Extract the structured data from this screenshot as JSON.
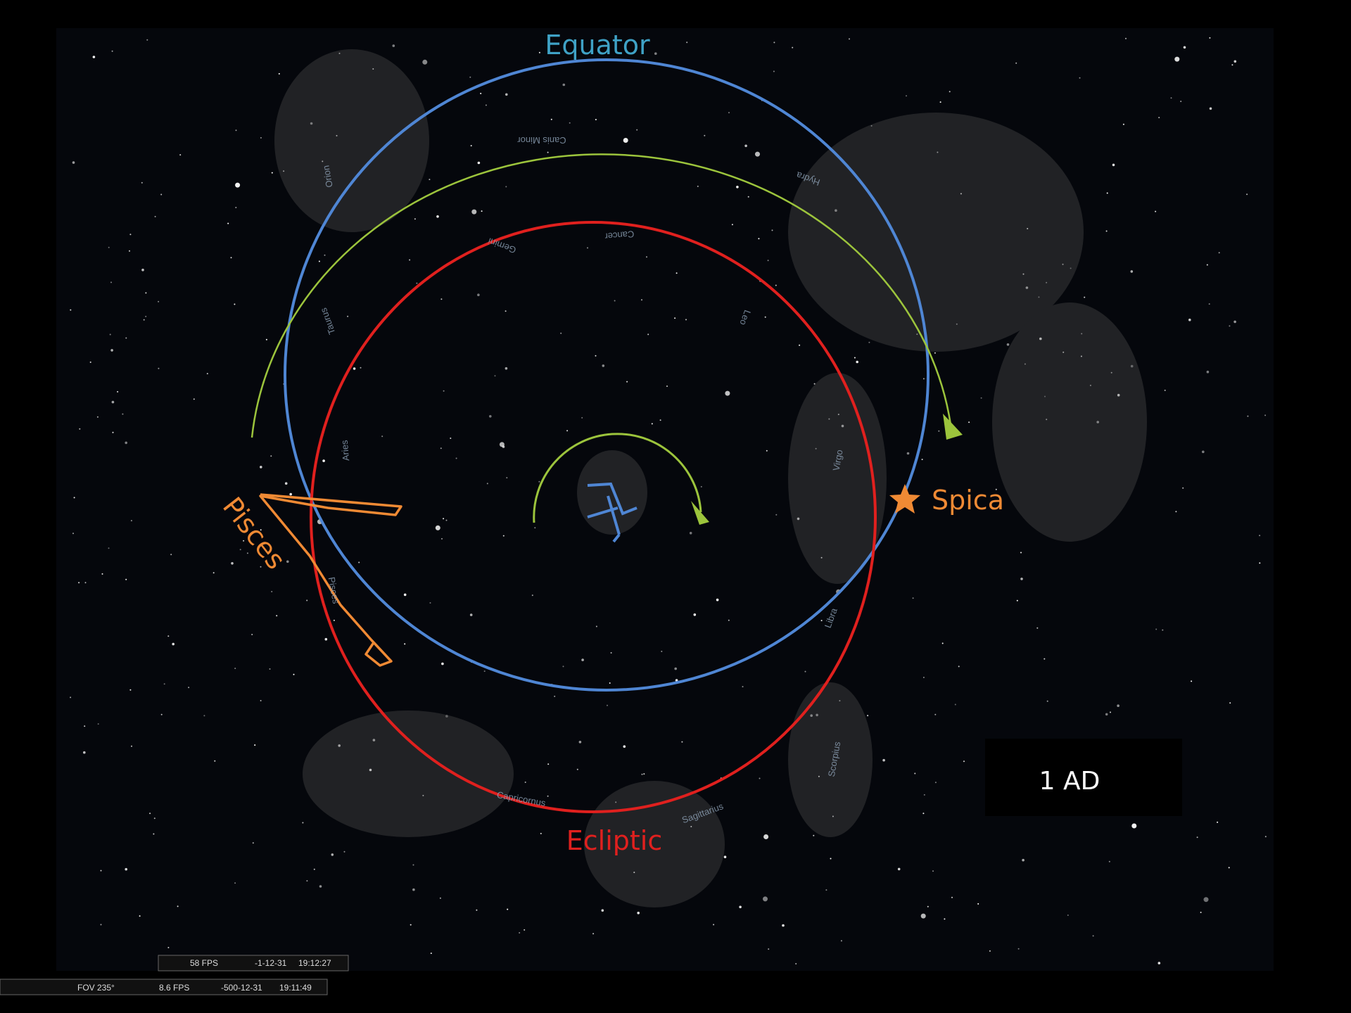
{
  "annotations": {
    "equator": "Equator",
    "ecliptic": "Ecliptic",
    "star": "Spica",
    "constellation": "Pisces",
    "era": "1 AD"
  },
  "constellation_labels": [
    "Canis Minor",
    "Hydra",
    "Orion",
    "Gemini",
    "Cancer",
    "Taurus",
    "Leo",
    "Virgo",
    "Aries",
    "Pisces",
    "Libra",
    "Scorpius",
    "Sagittarius",
    "Capricornus"
  ],
  "status_bars": [
    {
      "fps": "58 FPS",
      "date": "-1-12-31",
      "time": "19:12:27"
    },
    {
      "fov": "FOV 235°",
      "fps": "8.6 FPS",
      "date": "-500-12-31",
      "time": "19:11:49"
    }
  ]
}
